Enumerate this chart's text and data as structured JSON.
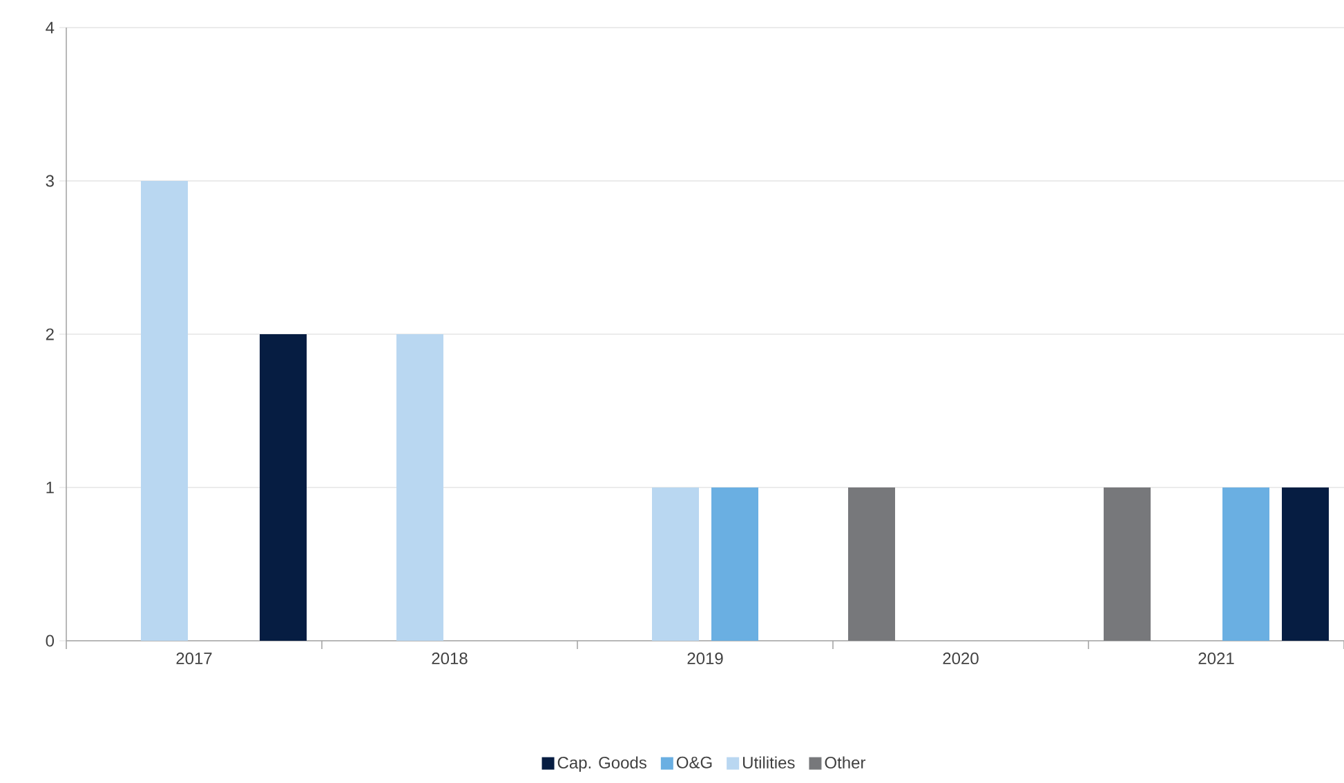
{
  "chart_data": {
    "type": "bar",
    "categories": [
      "2017",
      "2018",
      "2019",
      "2020",
      "2021"
    ],
    "series": [
      {
        "name": "Cap. Goods",
        "color": "#061d42",
        "values": [
          2,
          0,
          0,
          0,
          1
        ]
      },
      {
        "name": "O&G",
        "color": "#6aafe2",
        "values": [
          0,
          0,
          1,
          0,
          1
        ]
      },
      {
        "name": "Utilities",
        "color": "#b9d7f1",
        "values": [
          3,
          2,
          1,
          0,
          0
        ]
      },
      {
        "name": "Other",
        "color": "#77787b",
        "values": [
          0,
          0,
          0,
          1,
          1
        ]
      }
    ],
    "ylim": [
      0,
      4
    ],
    "yticks": [
      0,
      1,
      2,
      3,
      4
    ],
    "grid": "y",
    "legend": "bottom"
  }
}
